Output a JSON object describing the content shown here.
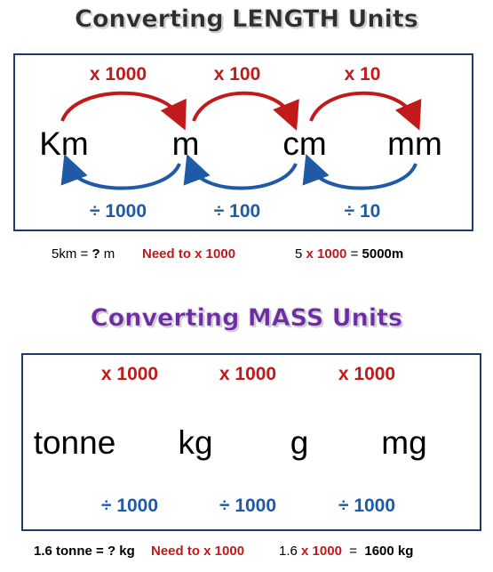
{
  "length": {
    "title": "Converting LENGTH Units",
    "units": [
      "Km",
      "m",
      "cm",
      "mm"
    ],
    "multiply": [
      "x 1000",
      "x 100",
      "x 10"
    ],
    "divide": [
      "÷ 1000",
      "÷ 100",
      "÷ 10"
    ],
    "example": {
      "question": "5km = ",
      "question_mark": "?",
      "question_unit": " m",
      "hint": "Need to x 1000",
      "calc_start": "5 ",
      "calc_op": "x 1000",
      "calc_eq": " = ",
      "calc_result": "5000m"
    }
  },
  "mass": {
    "title": "Converting MASS Units",
    "units": [
      "tonne",
      "kg",
      "g",
      "mg"
    ],
    "multiply": [
      "x 1000",
      "x 1000",
      "x 1000"
    ],
    "divide": [
      "÷ 1000",
      "÷ 1000",
      "÷ 1000"
    ],
    "example": {
      "question": "1.6 tonne = ? kg",
      "hint": "Need to x 1000",
      "calc_start": "1.6 ",
      "calc_op": "x 1000",
      "calc_eq": "  =  ",
      "calc_result": "1600 kg"
    }
  },
  "colors": {
    "multiply": "#c01a1a",
    "divide": "#1f5aa6",
    "mass_title": "#6f2aa8",
    "border": "#1f3a6e"
  }
}
